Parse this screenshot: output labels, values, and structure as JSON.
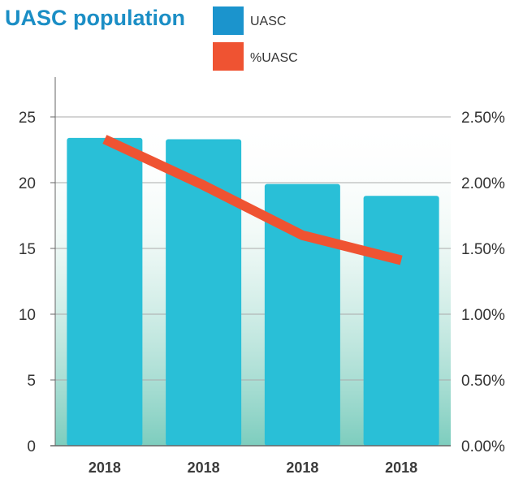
{
  "chart_data": {
    "type": "bar",
    "title": "UASC population",
    "categories": [
      "2018",
      "2018",
      "2018",
      "2018"
    ],
    "series": [
      {
        "name": "UASC",
        "kind": "bar",
        "axis": "left",
        "values": [
          23.4,
          23.3,
          19.9,
          19.0
        ],
        "color": "#29bfd7"
      },
      {
        "name": "%UASC",
        "kind": "line",
        "axis": "right",
        "values": [
          2.33,
          1.98,
          1.6,
          1.41
        ],
        "color": "#ef5332"
      }
    ],
    "y_left": {
      "min": 0,
      "max": 25,
      "ticks": [
        "0",
        "5",
        "10",
        "15",
        "20",
        "25"
      ]
    },
    "y_right": {
      "min": 0,
      "max": 2.5,
      "ticks": [
        "0.00%",
        "0.50%",
        "1.00%",
        "1.50%",
        "2.00%",
        "2.50%"
      ]
    },
    "grid": true,
    "legend_position": "top",
    "colors": {
      "title": "#1b8ec5",
      "legend_uasc": "#1b94cd",
      "legend_pct": "#ef5332",
      "grid": "#aaaaaa",
      "axis": "#666666",
      "background_gradient_bottom": "#7dcdbe"
    }
  }
}
